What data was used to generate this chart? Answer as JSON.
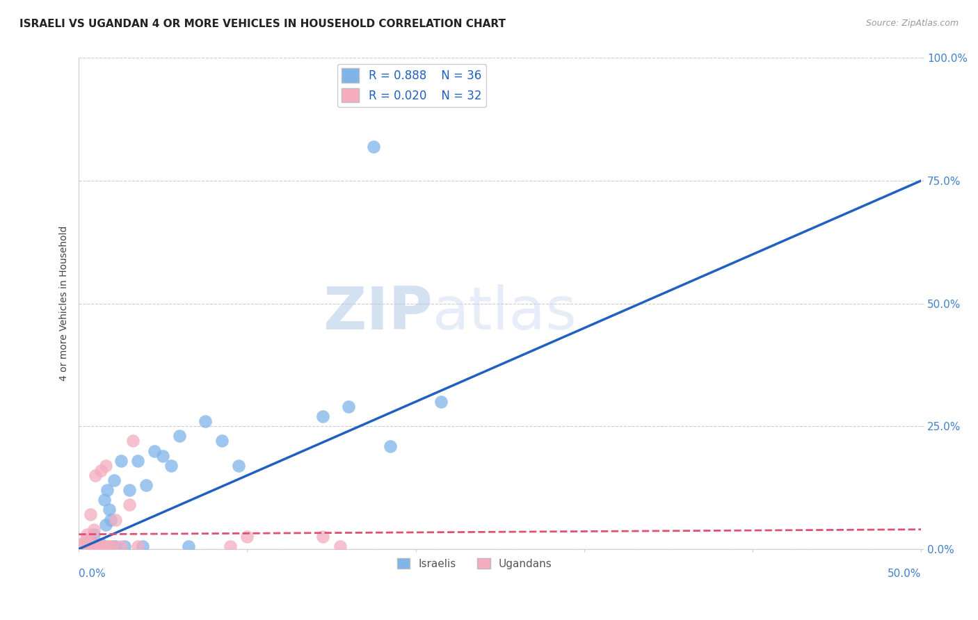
{
  "title": "ISRAELI VS UGANDAN 4 OR MORE VEHICLES IN HOUSEHOLD CORRELATION CHART",
  "source": "Source: ZipAtlas.com",
  "ylabel": "4 or more Vehicles in Household",
  "xlim": [
    0.0,
    0.5
  ],
  "ylim": [
    0.0,
    1.0
  ],
  "xtick_labels_bottom": [
    "0.0%",
    "",
    "",
    "",
    "",
    "50.0%"
  ],
  "xtick_vals": [
    0.0,
    0.1,
    0.2,
    0.3,
    0.4,
    0.5
  ],
  "ytick_labels": [
    "0.0%",
    "25.0%",
    "50.0%",
    "75.0%",
    "100.0%"
  ],
  "ytick_vals": [
    0.0,
    0.25,
    0.5,
    0.75,
    1.0
  ],
  "legend_R_israeli": "0.888",
  "legend_N_israeli": "36",
  "legend_R_ugandan": "0.020",
  "legend_N_ugandan": "32",
  "israeli_color": "#7EB4EA",
  "ugandan_color": "#F4ACBE",
  "israeli_line_color": "#2060C0",
  "ugandan_line_color": "#E05070",
  "watermark_zip": "ZIP",
  "watermark_atlas": "atlas",
  "israeli_scatter_x": [
    0.005,
    0.007,
    0.008,
    0.009,
    0.01,
    0.01,
    0.012,
    0.013,
    0.015,
    0.015,
    0.016,
    0.017,
    0.018,
    0.019,
    0.02,
    0.021,
    0.022,
    0.025,
    0.027,
    0.03,
    0.035,
    0.038,
    0.04,
    0.045,
    0.05,
    0.055,
    0.06,
    0.065,
    0.075,
    0.085,
    0.095,
    0.145,
    0.16,
    0.175,
    0.185,
    0.215
  ],
  "israeli_scatter_y": [
    0.01,
    0.02,
    0.005,
    0.03,
    0.005,
    0.01,
    0.005,
    0.01,
    0.005,
    0.1,
    0.05,
    0.12,
    0.08,
    0.06,
    0.005,
    0.14,
    0.005,
    0.18,
    0.005,
    0.12,
    0.18,
    0.005,
    0.13,
    0.2,
    0.19,
    0.17,
    0.23,
    0.005,
    0.26,
    0.22,
    0.17,
    0.27,
    0.29,
    0.82,
    0.21,
    0.3
  ],
  "ugandan_scatter_x": [
    0.002,
    0.003,
    0.004,
    0.005,
    0.005,
    0.006,
    0.007,
    0.007,
    0.008,
    0.008,
    0.009,
    0.009,
    0.01,
    0.01,
    0.011,
    0.012,
    0.013,
    0.014,
    0.015,
    0.016,
    0.017,
    0.018,
    0.02,
    0.022,
    0.025,
    0.03,
    0.032,
    0.035,
    0.09,
    0.1,
    0.145,
    0.155
  ],
  "ugandan_scatter_y": [
    0.01,
    0.005,
    0.02,
    0.01,
    0.03,
    0.005,
    0.07,
    0.005,
    0.005,
    0.02,
    0.005,
    0.04,
    0.005,
    0.15,
    0.005,
    0.005,
    0.16,
    0.005,
    0.005,
    0.17,
    0.005,
    0.005,
    0.005,
    0.06,
    0.005,
    0.09,
    0.22,
    0.005,
    0.005,
    0.025,
    0.025,
    0.005
  ],
  "israeli_trendline_x": [
    0.0,
    0.5
  ],
  "israeli_trendline_y": [
    0.0,
    0.75
  ],
  "ugandan_trendline_x": [
    0.0,
    0.5
  ],
  "ugandan_trendline_y": [
    0.03,
    0.04
  ],
  "background_color": "#FFFFFF",
  "grid_color": "#CCCCCC",
  "tick_color": "#4080CC",
  "title_fontsize": 11,
  "source_fontsize": 9,
  "axis_label_fontsize": 10,
  "tick_fontsize": 11,
  "legend_fontsize": 12
}
